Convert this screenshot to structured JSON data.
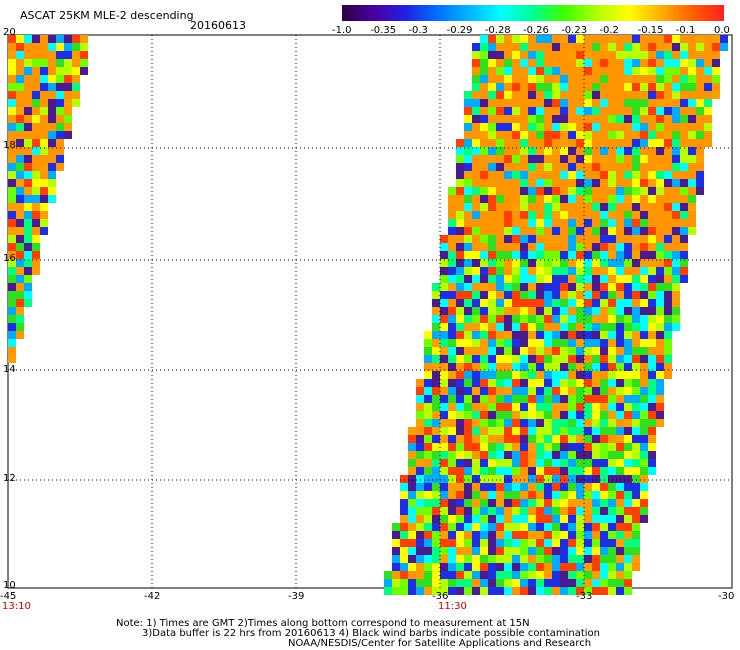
{
  "header": {
    "title": "ASCAT 25KM MLE-2 descending",
    "date": "20160613"
  },
  "colorbar": {
    "colors": [
      "#2a0040",
      "#4b00a0",
      "#2020e0",
      "#0070ff",
      "#00b4ff",
      "#00ffff",
      "#00ff90",
      "#40ff00",
      "#b0ff00",
      "#ffff00",
      "#ffb000",
      "#ff6000",
      "#ff2020"
    ],
    "ticks": [
      "-1.0",
      "-0.35",
      "-0.3",
      "-0.29",
      "-0.28",
      "-0.26",
      "-0.23",
      "-0.2",
      "-0.15",
      "-0.1",
      "0.0"
    ]
  },
  "map": {
    "lon_ticks": [
      "-45",
      "-42",
      "-39",
      "-36",
      "-33",
      "-30"
    ],
    "lat_ticks": [
      "20",
      "18",
      "16",
      "14",
      "12",
      "10"
    ],
    "times": [
      {
        "label": "13:10"
      },
      {
        "label": "11:30"
      }
    ]
  },
  "notes": {
    "line1": "Note: 1) Times are GMT 2)Times along bottom correspond to measurement at 15N",
    "line2": "3)Data buffer is 22 hrs from 20160613 4) Black wind barbs indicate possible contamination",
    "line3": "NOAA/NESDIS/Center for Satellite Applications and Research"
  }
}
